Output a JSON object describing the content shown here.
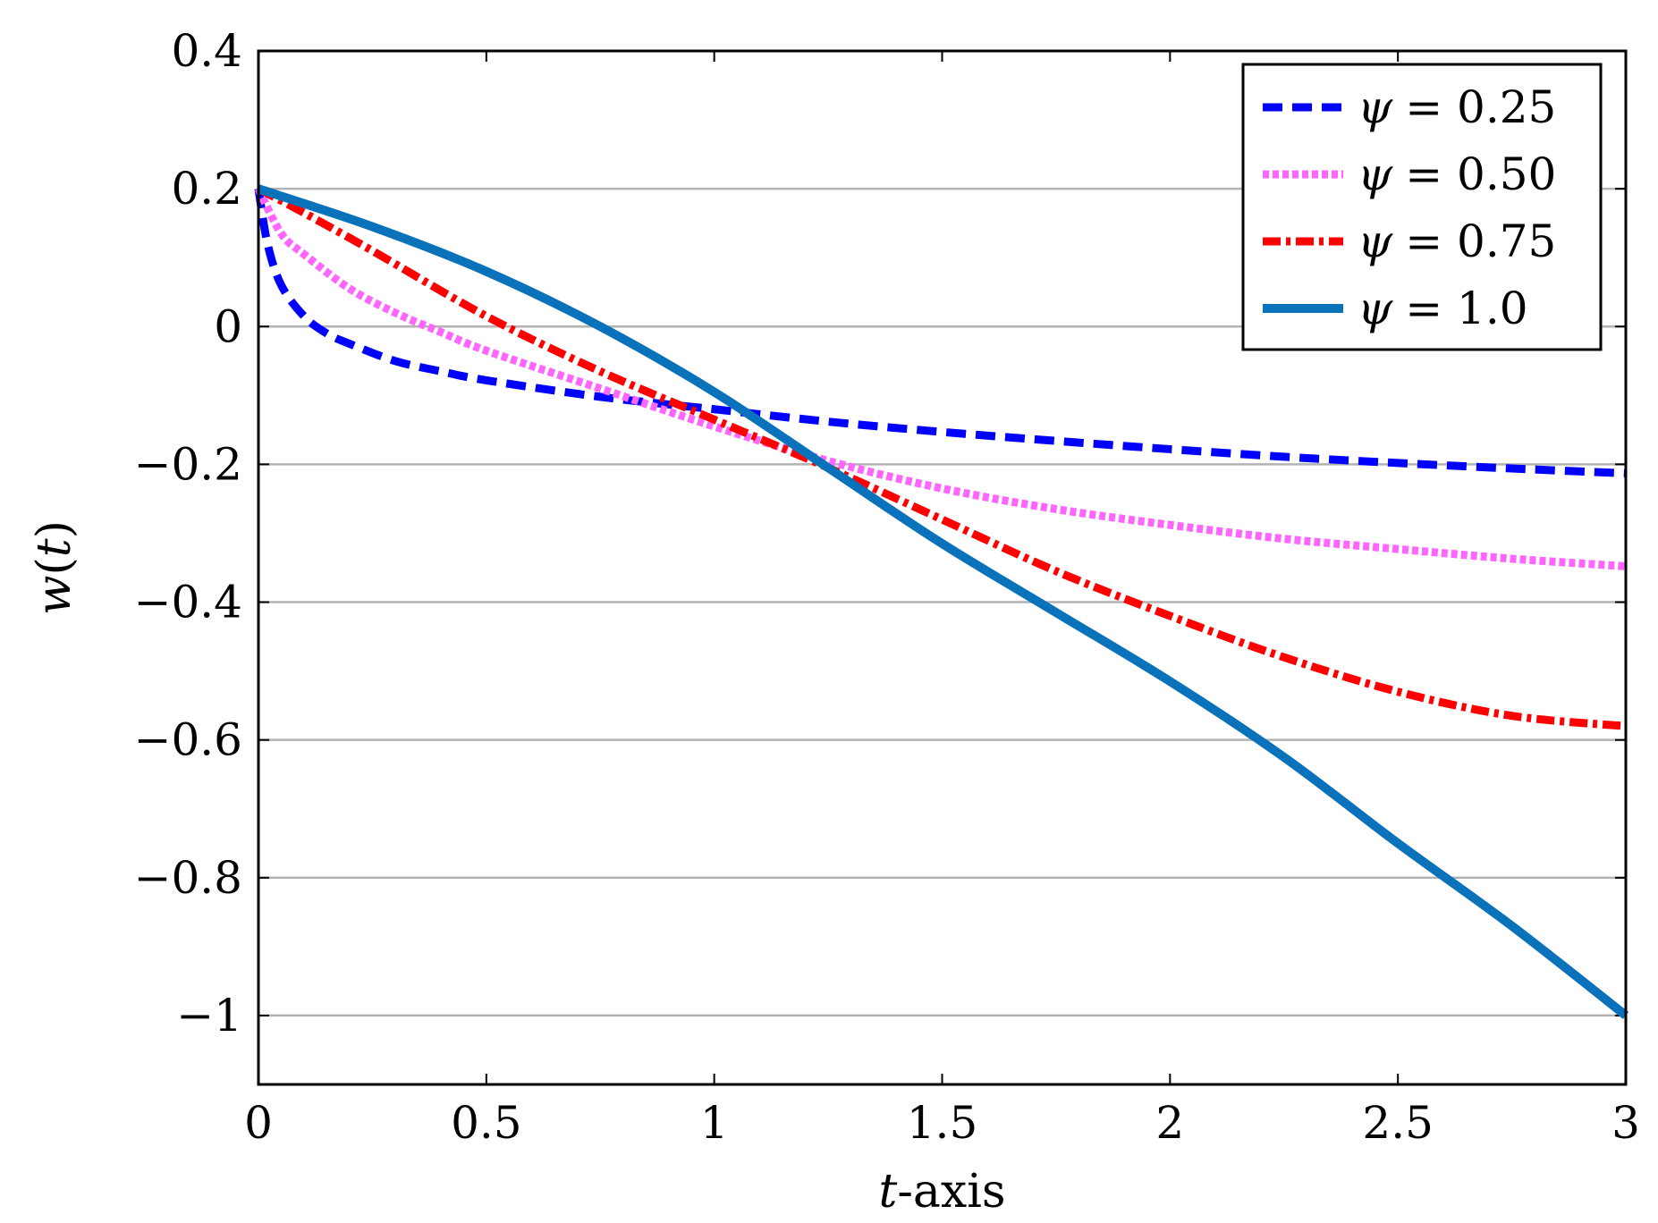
{
  "chart_data": {
    "type": "line",
    "title": "",
    "xlabel": {
      "var": "t",
      "suffix": "-axis"
    },
    "ylabel": {
      "func": "w",
      "var": "t"
    },
    "xlim": [
      0,
      3
    ],
    "ylim": [
      -1.1,
      0.4
    ],
    "x_ticks": [
      0,
      0.5,
      1,
      1.5,
      2,
      2.5,
      3
    ],
    "x_tick_labels": [
      "0",
      "0.5",
      "1",
      "1.5",
      "2",
      "2.5",
      "3"
    ],
    "y_ticks": [
      -1,
      -0.8,
      -0.6,
      -0.4,
      -0.2,
      0,
      0.2,
      0.4
    ],
    "y_tick_labels": [
      "−1",
      "−0.8",
      "−0.6",
      "−0.4",
      "−0.2",
      "0",
      "0.2",
      "0.4"
    ],
    "grid": {
      "y_major": true,
      "x_major": false
    },
    "legend_position": "top-right",
    "series": [
      {
        "name": "ψ = 0.25",
        "legend_symbol": "ψ",
        "legend_value": "= 0.25",
        "color": "#0000ff",
        "style": "dashed",
        "x": [
          0,
          0.02,
          0.05,
          0.1,
          0.15,
          0.2,
          0.3,
          0.4,
          0.5,
          0.75,
          1.0,
          1.25,
          1.5,
          1.75,
          2.0,
          2.25,
          2.5,
          2.75,
          3.0
        ],
        "y": [
          0.2,
          0.12,
          0.06,
          0.015,
          -0.01,
          -0.025,
          -0.05,
          -0.065,
          -0.078,
          -0.102,
          -0.12,
          -0.138,
          -0.153,
          -0.166,
          -0.178,
          -0.189,
          -0.198,
          -0.206,
          -0.213
        ]
      },
      {
        "name": "ψ = 0.50",
        "legend_symbol": "ψ",
        "legend_value": "= 0.50",
        "color": "#ff66ff",
        "style": "dotted",
        "x": [
          0,
          0.05,
          0.1,
          0.2,
          0.3,
          0.4,
          0.5,
          0.75,
          1.0,
          1.25,
          1.5,
          1.75,
          2.0,
          2.25,
          2.5,
          2.75,
          3.0
        ],
        "y": [
          0.2,
          0.135,
          0.105,
          0.055,
          0.02,
          -0.008,
          -0.035,
          -0.09,
          -0.145,
          -0.195,
          -0.235,
          -0.265,
          -0.288,
          -0.308,
          -0.323,
          -0.337,
          -0.348
        ]
      },
      {
        "name": "ψ = 0.75",
        "legend_symbol": "ψ",
        "legend_value": "= 0.75",
        "color": "#ff0000",
        "style": "dash-dot",
        "x": [
          0,
          0.1,
          0.25,
          0.5,
          0.75,
          1.0,
          1.25,
          1.5,
          1.75,
          2.0,
          2.25,
          2.5,
          2.75,
          3.0
        ],
        "y": [
          0.2,
          0.165,
          0.11,
          0.015,
          -0.065,
          -0.135,
          -0.205,
          -0.28,
          -0.355,
          -0.42,
          -0.48,
          -0.53,
          -0.565,
          -0.58
        ]
      },
      {
        "name": "ψ = 1.0",
        "legend_symbol": "ψ",
        "legend_value": "= 1.0",
        "color": "#0a72ba",
        "style": "solid",
        "x": [
          0,
          0.25,
          0.5,
          0.75,
          1.0,
          1.25,
          1.5,
          1.75,
          2.0,
          2.25,
          2.5,
          2.75,
          3.0
        ],
        "y": [
          0.2,
          0.145,
          0.08,
          0.0,
          -0.095,
          -0.205,
          -0.315,
          -0.415,
          -0.515,
          -0.625,
          -0.75,
          -0.87,
          -1.0
        ]
      }
    ]
  }
}
